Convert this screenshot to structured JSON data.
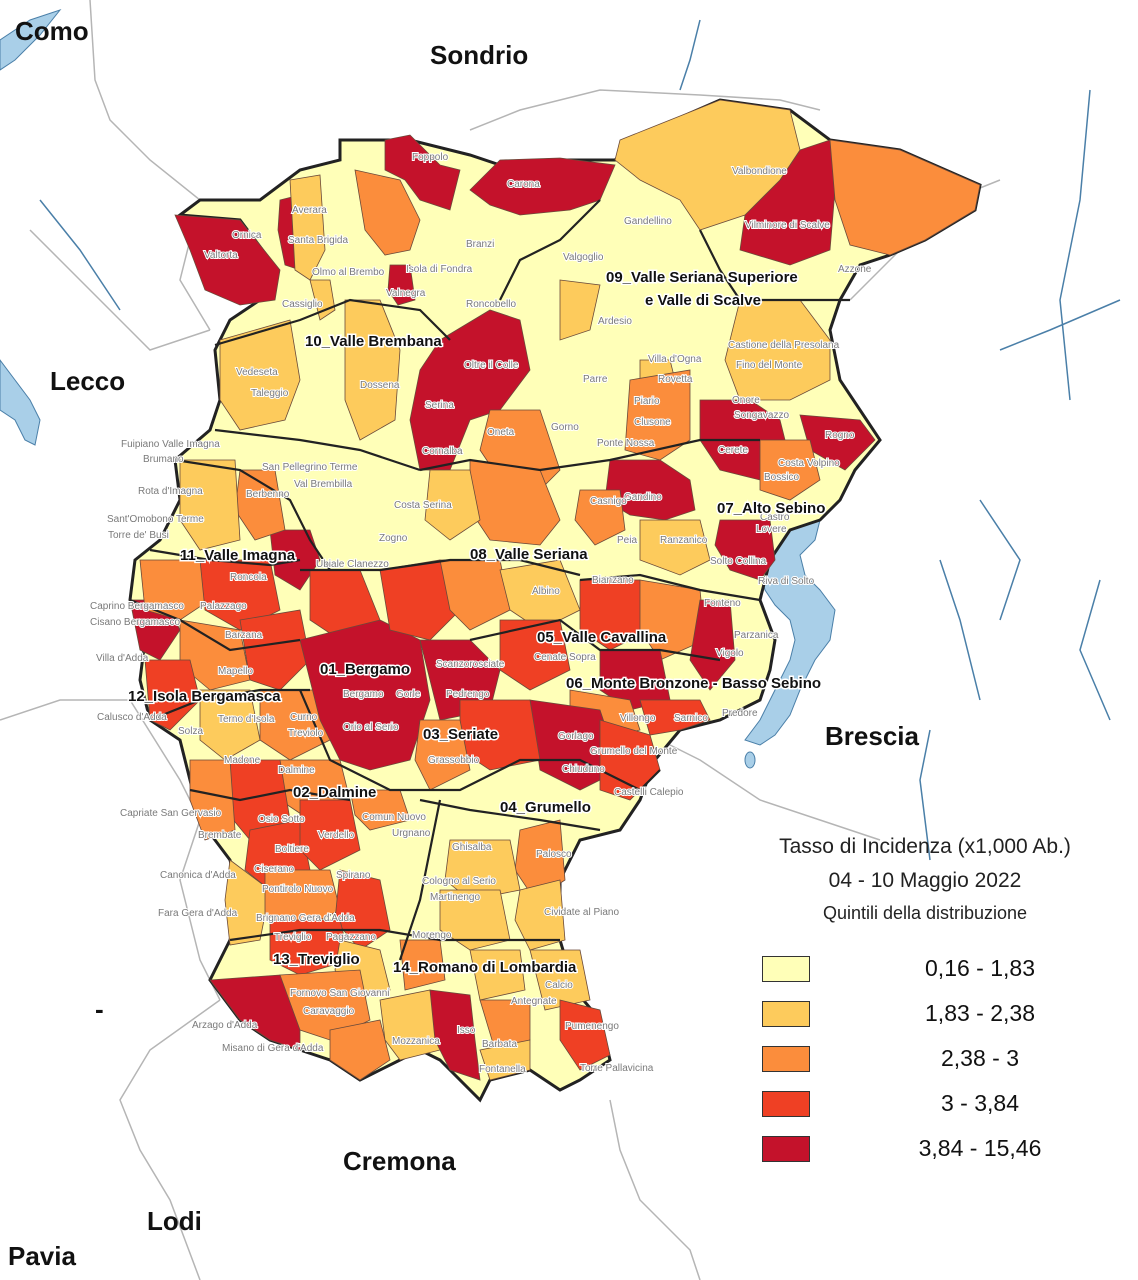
{
  "legend": {
    "title": "Tasso di Incidenza (x1,000 Ab.)",
    "period": "04 - 10 Maggio 2022",
    "subtitle": "Quintili della distribuzione",
    "classes": [
      {
        "label": "0,16 - 1,83",
        "color": "#ffffb8"
      },
      {
        "label": "1,83 - 2,38",
        "color": "#fdcb5c"
      },
      {
        "label": "2,38 - 3",
        "color": "#fb8d3c"
      },
      {
        "label": "3 - 3,84",
        "color": "#ef4024"
      },
      {
        "label": "3,84 - 15,46",
        "color": "#c4122b"
      }
    ]
  },
  "provinces": {
    "como": "Como",
    "sondrio": "Sondrio",
    "lecco": "Lecco",
    "brescia": "Brescia",
    "cremona": "Cremona",
    "lodi": "Lodi",
    "pavia": "Pavia",
    "dash": "-"
  },
  "districts": {
    "d01": "01_Bergamo",
    "d02": "02_Dalmine",
    "d03": "03_Seriate",
    "d04": "04_Grumello",
    "d05": "05_Valle Cavallina",
    "d06": "06_Monte Bronzone - Basso Sebino",
    "d07": "07_Alto Sebino",
    "d08": "08_Valle Seriana",
    "d09a": "09_Valle Seriana Superiore",
    "d09b": "e Valle di Scalve",
    "d10": "10_Valle Brembana",
    "d11": "11_Valle Imagna",
    "d12": "12_Isola Bergamasca",
    "d13": "13_Treviglio",
    "d14": "14_Romano di Lombardia"
  },
  "towns": {
    "foppolo": "Foppolo",
    "carona": "Carona",
    "valbondione": "Valbondione",
    "vilminore": "Vilminore di Scalve",
    "averara": "Averara",
    "santa_brigida": "Santa Brigida",
    "ornica": "Ornica",
    "valtorta": "Valtorta",
    "olmo": "Olmo al Brembo",
    "isola_fondra": "Isola di Fondra",
    "branzi": "Branzi",
    "gandellino": "Gandellino",
    "valgoglio": "Valgoglio",
    "azzone": "Azzone",
    "valnegra": "Valnegra",
    "cassiglio": "Cassiglio",
    "roncobello": "Roncobello",
    "ardesio": "Ardesio",
    "castione": "Castione della Presolana",
    "fino": "Fino del Monte",
    "villa_ogna": "Villa d'Ogna",
    "rovetta": "Rovetta",
    "parre": "Parre",
    "oltre_colle": "Oltre il Colle",
    "dossena": "Dossena",
    "vedeseta": "Vedeseta",
    "taleggio": "Taleggio",
    "serina": "Serina",
    "piario": "Piario",
    "clusone": "Clusone",
    "onore": "Onore",
    "songavazzo": "Songavazzo",
    "cerete": "Cerete",
    "rogno": "Rogno",
    "fuipiano": "Fuipiano Valle Imagna",
    "brumano": "Brumano",
    "oneta": "Oneta",
    "gorno": "Gorno",
    "ponte_nossa": "Ponte Nossa",
    "bossico": "Bossico",
    "costa_volpino": "Costa Volpino",
    "san_pellegrino": "San Pellegrino Terme",
    "val_brembilla": "Val Brembilla",
    "cornalba": "Cornalba",
    "rota": "Rota d'Imagna",
    "berbenno": "Berbenno",
    "santomobono": "Sant'Omobono Terme",
    "gandino": "Gandino",
    "casnigo": "Casnigo",
    "torre_busi": "Torre de' Busi",
    "costa_serina": "Costa Serina",
    "zogno": "Zogno",
    "lovere": "Lovere",
    "castro": "Castro",
    "peia": "Peia",
    "ranzanico": "Ranzanico",
    "solto": "Solto Collina",
    "riva": "Riva di Solto",
    "roncola": "Roncola",
    "ubiale": "Ubiale Clanezzo",
    "caprino": "Caprino Bergamasco",
    "cisano": "Cisano Bergamasco",
    "palazzago": "Palazzago",
    "albino": "Albino",
    "bianzano": "Bianzano",
    "fonteno": "Fonteno",
    "barzana": "Barzana",
    "villa_adda": "Villa d'Adda",
    "mapello": "Mapello",
    "cenate": "Cenate Sopra",
    "parzanica": "Parzanica",
    "vigolo": "Vigolo",
    "scanzorosciate": "Scanzorosciate",
    "pedrengo": "Pedrengo",
    "bergamo": "Bergamo",
    "gorle": "Gorle",
    "calusco": "Calusco d'Adda",
    "terno": "Terno d'Isola",
    "curno": "Curno",
    "treviolo": "Treviolo",
    "orio": "Orio al Serio",
    "solza": "Solza",
    "gorlago": "Gorlago",
    "grassobbio": "Grassobbio",
    "villongo": "Villongo",
    "sarnico": "Sarnico",
    "predore": "Predore",
    "madone": "Madone",
    "dalmine": "Dalmine",
    "grumello": "Grumello del Monte",
    "chiuduno": "Chiuduno",
    "castelli": "Castelli Calepio",
    "capriate": "Capriate San Gervasio",
    "osio": "Osio Sotto",
    "comun_nuovo": "Comun Nuovo",
    "urgnano": "Urgnano",
    "brembate": "Brembate",
    "verdello": "Verdello",
    "ghisalba": "Ghisalba",
    "palosco": "Palosco",
    "canonica": "Canonica d'Adda",
    "ciserano": "Ciserano",
    "boltiere": "Boltiere",
    "spirano": "Spirano",
    "cologno": "Cologno al Serio",
    "martinengo": "Martinengo",
    "cividate": "Cividate al Piano",
    "pontirolo": "Pontirolo Nuovo",
    "fara": "Fara Gera d'Adda",
    "brignano": "Brignano Gera d'Adda",
    "morengo": "Morengo",
    "pagazzano": "Pagazzano",
    "treviglio_t": "Treviglio",
    "antegnate": "Antegnate",
    "calcio": "Calcio",
    "pumenengo": "Pumenengo",
    "fornovo": "Fornovo San Giovanni",
    "caravaggio": "Caravaggio",
    "arzago": "Arzago d'Adda",
    "misano": "Misano di Gera d'Adda",
    "mozzanica": "Mozzanica",
    "isso": "Isso",
    "barbata": "Barbata",
    "fontanella": "Fontanella",
    "torre_pallavicina": "Torre Pallavicina"
  }
}
